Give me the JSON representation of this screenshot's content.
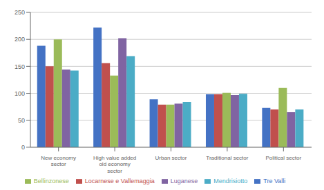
{
  "chart_data": {
    "type": "bar",
    "categories": [
      "New economy\nsector",
      "High value added\nold economy\nsector",
      "Urban sector",
      "Traditional sector",
      "Political sector"
    ],
    "series": [
      {
        "name": "Tre Valli",
        "color": "#4472C4",
        "values": [
          188,
          222,
          89,
          98,
          73
        ]
      },
      {
        "name": "Locarnese e Vallemaggia",
        "color": "#C0504D",
        "values": [
          150,
          156,
          79,
          98,
          70
        ]
      },
      {
        "name": "Bellinzonese",
        "color": "#9BBB59",
        "values": [
          200,
          133,
          79,
          101,
          110
        ]
      },
      {
        "name": "Luganese",
        "color": "#8064A2",
        "values": [
          144,
          202,
          81,
          97,
          65
        ]
      },
      {
        "name": "Mendrisiotto",
        "color": "#4BACC6",
        "values": [
          142,
          169,
          84,
          99,
          70
        ]
      }
    ],
    "ylim": [
      0,
      250
    ],
    "yticks": [
      0,
      50,
      100,
      150,
      200,
      250
    ],
    "grid": true,
    "legend": "bottom"
  }
}
